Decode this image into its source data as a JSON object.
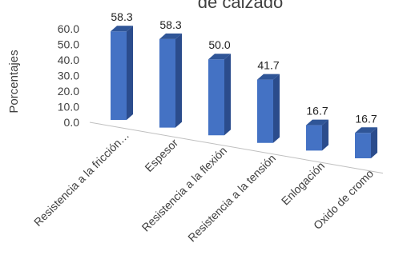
{
  "chart_data": {
    "type": "bar",
    "title": "de calzado",
    "ylabel": "Porcentajes",
    "xlabel": "",
    "ylim": [
      0,
      60
    ],
    "yticks": [
      "0.0",
      "10.0",
      "20.0",
      "30.0",
      "40.0",
      "50.0",
      "60.0"
    ],
    "categories": [
      "Resistencia a la fricción…",
      "Espesor",
      "Resistencia a la flexión",
      "Resistencia a la tensión",
      "Enlogación",
      "Oxido de cromo"
    ],
    "values": [
      58.3,
      58.3,
      50.0,
      41.7,
      16.7,
      16.7
    ],
    "data_labels": [
      "58.3",
      "58.3",
      "50.0",
      "41.7",
      "16.7",
      "16.7"
    ],
    "style": "3d-column",
    "legend": "none",
    "colors": {
      "front": "#4472C4",
      "side": "#2B4C8C",
      "top": "#2F5597",
      "axis": "#BFBFBF"
    }
  }
}
